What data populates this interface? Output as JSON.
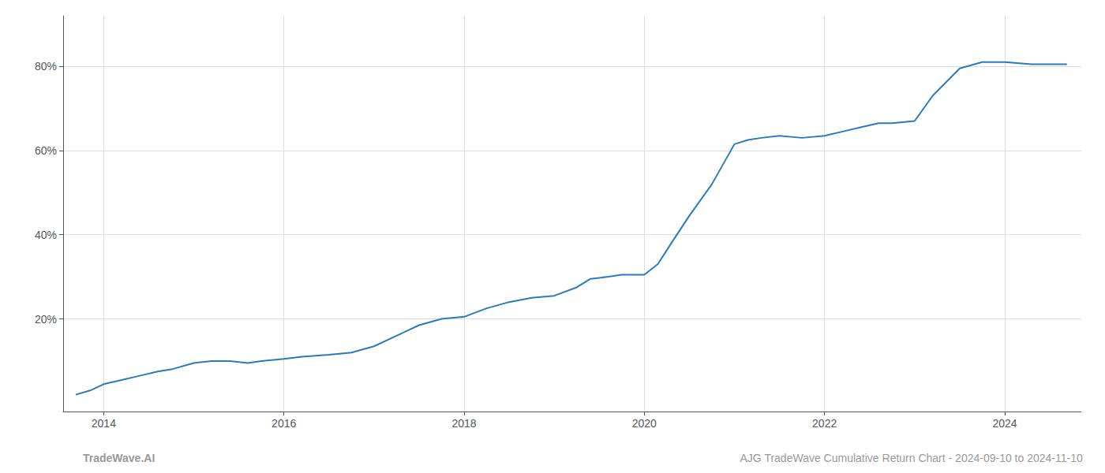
{
  "chart_data": {
    "type": "line",
    "x": [
      2013.69,
      2013.85,
      2014.0,
      2014.2,
      2014.4,
      2014.6,
      2014.75,
      2015.0,
      2015.2,
      2015.4,
      2015.6,
      2015.75,
      2016.0,
      2016.2,
      2016.5,
      2016.75,
      2017.0,
      2017.25,
      2017.5,
      2017.75,
      2018.0,
      2018.25,
      2018.5,
      2018.75,
      2019.0,
      2019.25,
      2019.4,
      2019.6,
      2019.75,
      2020.0,
      2020.15,
      2020.3,
      2020.5,
      2020.75,
      2021.0,
      2021.15,
      2021.3,
      2021.5,
      2021.75,
      2022.0,
      2022.2,
      2022.4,
      2022.6,
      2022.75,
      2023.0,
      2023.2,
      2023.5,
      2023.75,
      2024.0,
      2024.3,
      2024.69
    ],
    "values": [
      2.0,
      3.0,
      4.5,
      5.5,
      6.5,
      7.5,
      8.0,
      9.5,
      10.0,
      10.0,
      9.5,
      10.0,
      10.5,
      11.0,
      11.5,
      12.0,
      13.5,
      16.0,
      18.5,
      20.0,
      20.5,
      22.5,
      24.0,
      25.0,
      25.5,
      27.5,
      29.5,
      30.0,
      30.5,
      30.5,
      33.0,
      38.0,
      44.5,
      52.0,
      61.5,
      62.5,
      63.0,
      63.5,
      63.0,
      63.5,
      64.5,
      65.5,
      66.5,
      66.5,
      67.0,
      73.0,
      79.5,
      81.0,
      81.0,
      80.5,
      80.5
    ],
    "color": "#2b7bba",
    "xlim": [
      2013.55,
      2024.85
    ],
    "ylim": [
      -2,
      92
    ],
    "xticks": [
      2014,
      2016,
      2018,
      2020,
      2022,
      2024
    ],
    "yticks": [
      {
        "value": 20,
        "label": "20%"
      },
      {
        "value": 40,
        "label": "40%"
      },
      {
        "value": 60,
        "label": "60%"
      },
      {
        "value": 80,
        "label": "80%"
      }
    ],
    "grid": true,
    "annotations": [
      "TradeWave.AI",
      "AJG TradeWave Cumulative Return Chart - 2024-09-10 to 2024-11-10"
    ]
  }
}
